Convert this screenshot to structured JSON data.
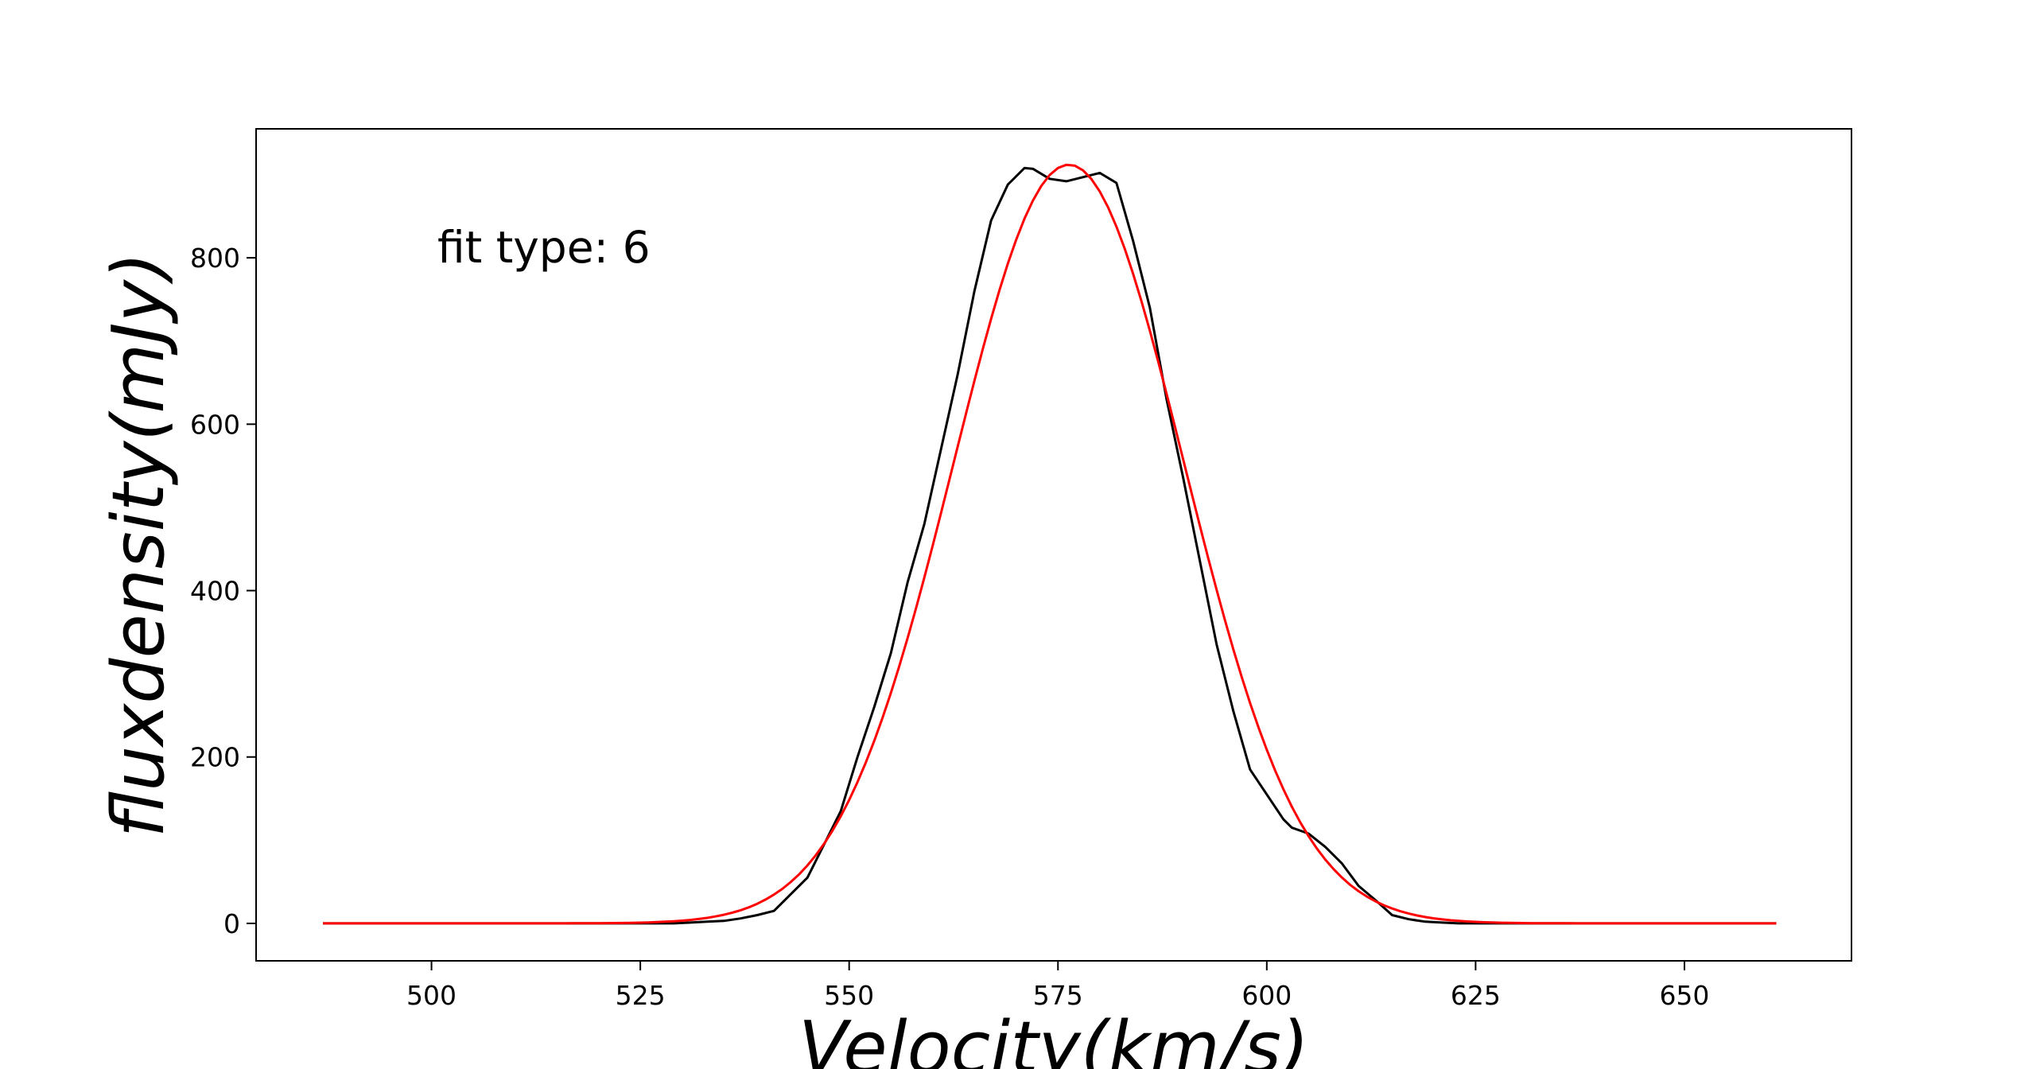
{
  "chart_data": {
    "type": "line",
    "title": "",
    "xlabel": "Velocity(km/s)",
    "ylabel": "fluxdensity(mJy)",
    "xlim": [
      479,
      670
    ],
    "ylim": [
      -45,
      955
    ],
    "xticks": [
      500,
      525,
      550,
      575,
      600,
      625,
      650
    ],
    "yticks": [
      0,
      200,
      400,
      600,
      800
    ],
    "grid": false,
    "annotation": "fit type: 6",
    "series": [
      {
        "color": "#000000",
        "x": [
          487,
          489,
          491,
          493,
          495,
          497,
          499,
          501,
          503,
          505,
          507,
          509,
          511,
          513,
          515,
          517,
          519,
          521,
          523,
          525,
          527,
          529,
          531,
          533,
          535,
          537,
          539,
          541,
          543,
          545,
          547,
          549,
          551,
          553,
          555,
          557,
          559,
          561,
          563,
          565,
          567,
          569,
          571,
          572,
          574,
          576,
          578,
          580,
          582,
          584,
          586,
          588,
          590,
          592,
          594,
          596,
          598,
          600,
          602,
          603,
          605,
          607,
          609,
          611,
          613,
          615,
          617,
          619,
          621,
          623,
          625,
          627,
          629,
          631,
          633,
          635,
          637,
          639,
          641,
          643,
          645,
          647,
          649,
          651,
          653,
          655,
          657,
          659,
          661
        ],
        "y": [
          0,
          0,
          0,
          0,
          0,
          0,
          0,
          0,
          0,
          0,
          0,
          0,
          0,
          0,
          0,
          0,
          0,
          0,
          0,
          0,
          0,
          0,
          1,
          2,
          3,
          6,
          10,
          15,
          35,
          55,
          95,
          135,
          200,
          260,
          325,
          410,
          480,
          570,
          660,
          760,
          845,
          888,
          908,
          907,
          895,
          892,
          897,
          902,
          890,
          820,
          740,
          630,
          535,
          435,
          335,
          255,
          185,
          155,
          125,
          115,
          108,
          92,
          72,
          45,
          28,
          10,
          5,
          2,
          1,
          0,
          0,
          0,
          0,
          0,
          0,
          0,
          0,
          0,
          0,
          0,
          0,
          0,
          0,
          0,
          0,
          0,
          0,
          0,
          0
        ]
      },
      {
        "color": "#ff0000",
        "model": "gaussian",
        "amplitude": 912,
        "center": 576.3,
        "sigma": 13.8,
        "x_range": [
          487,
          661
        ],
        "x_step": 1
      }
    ]
  }
}
